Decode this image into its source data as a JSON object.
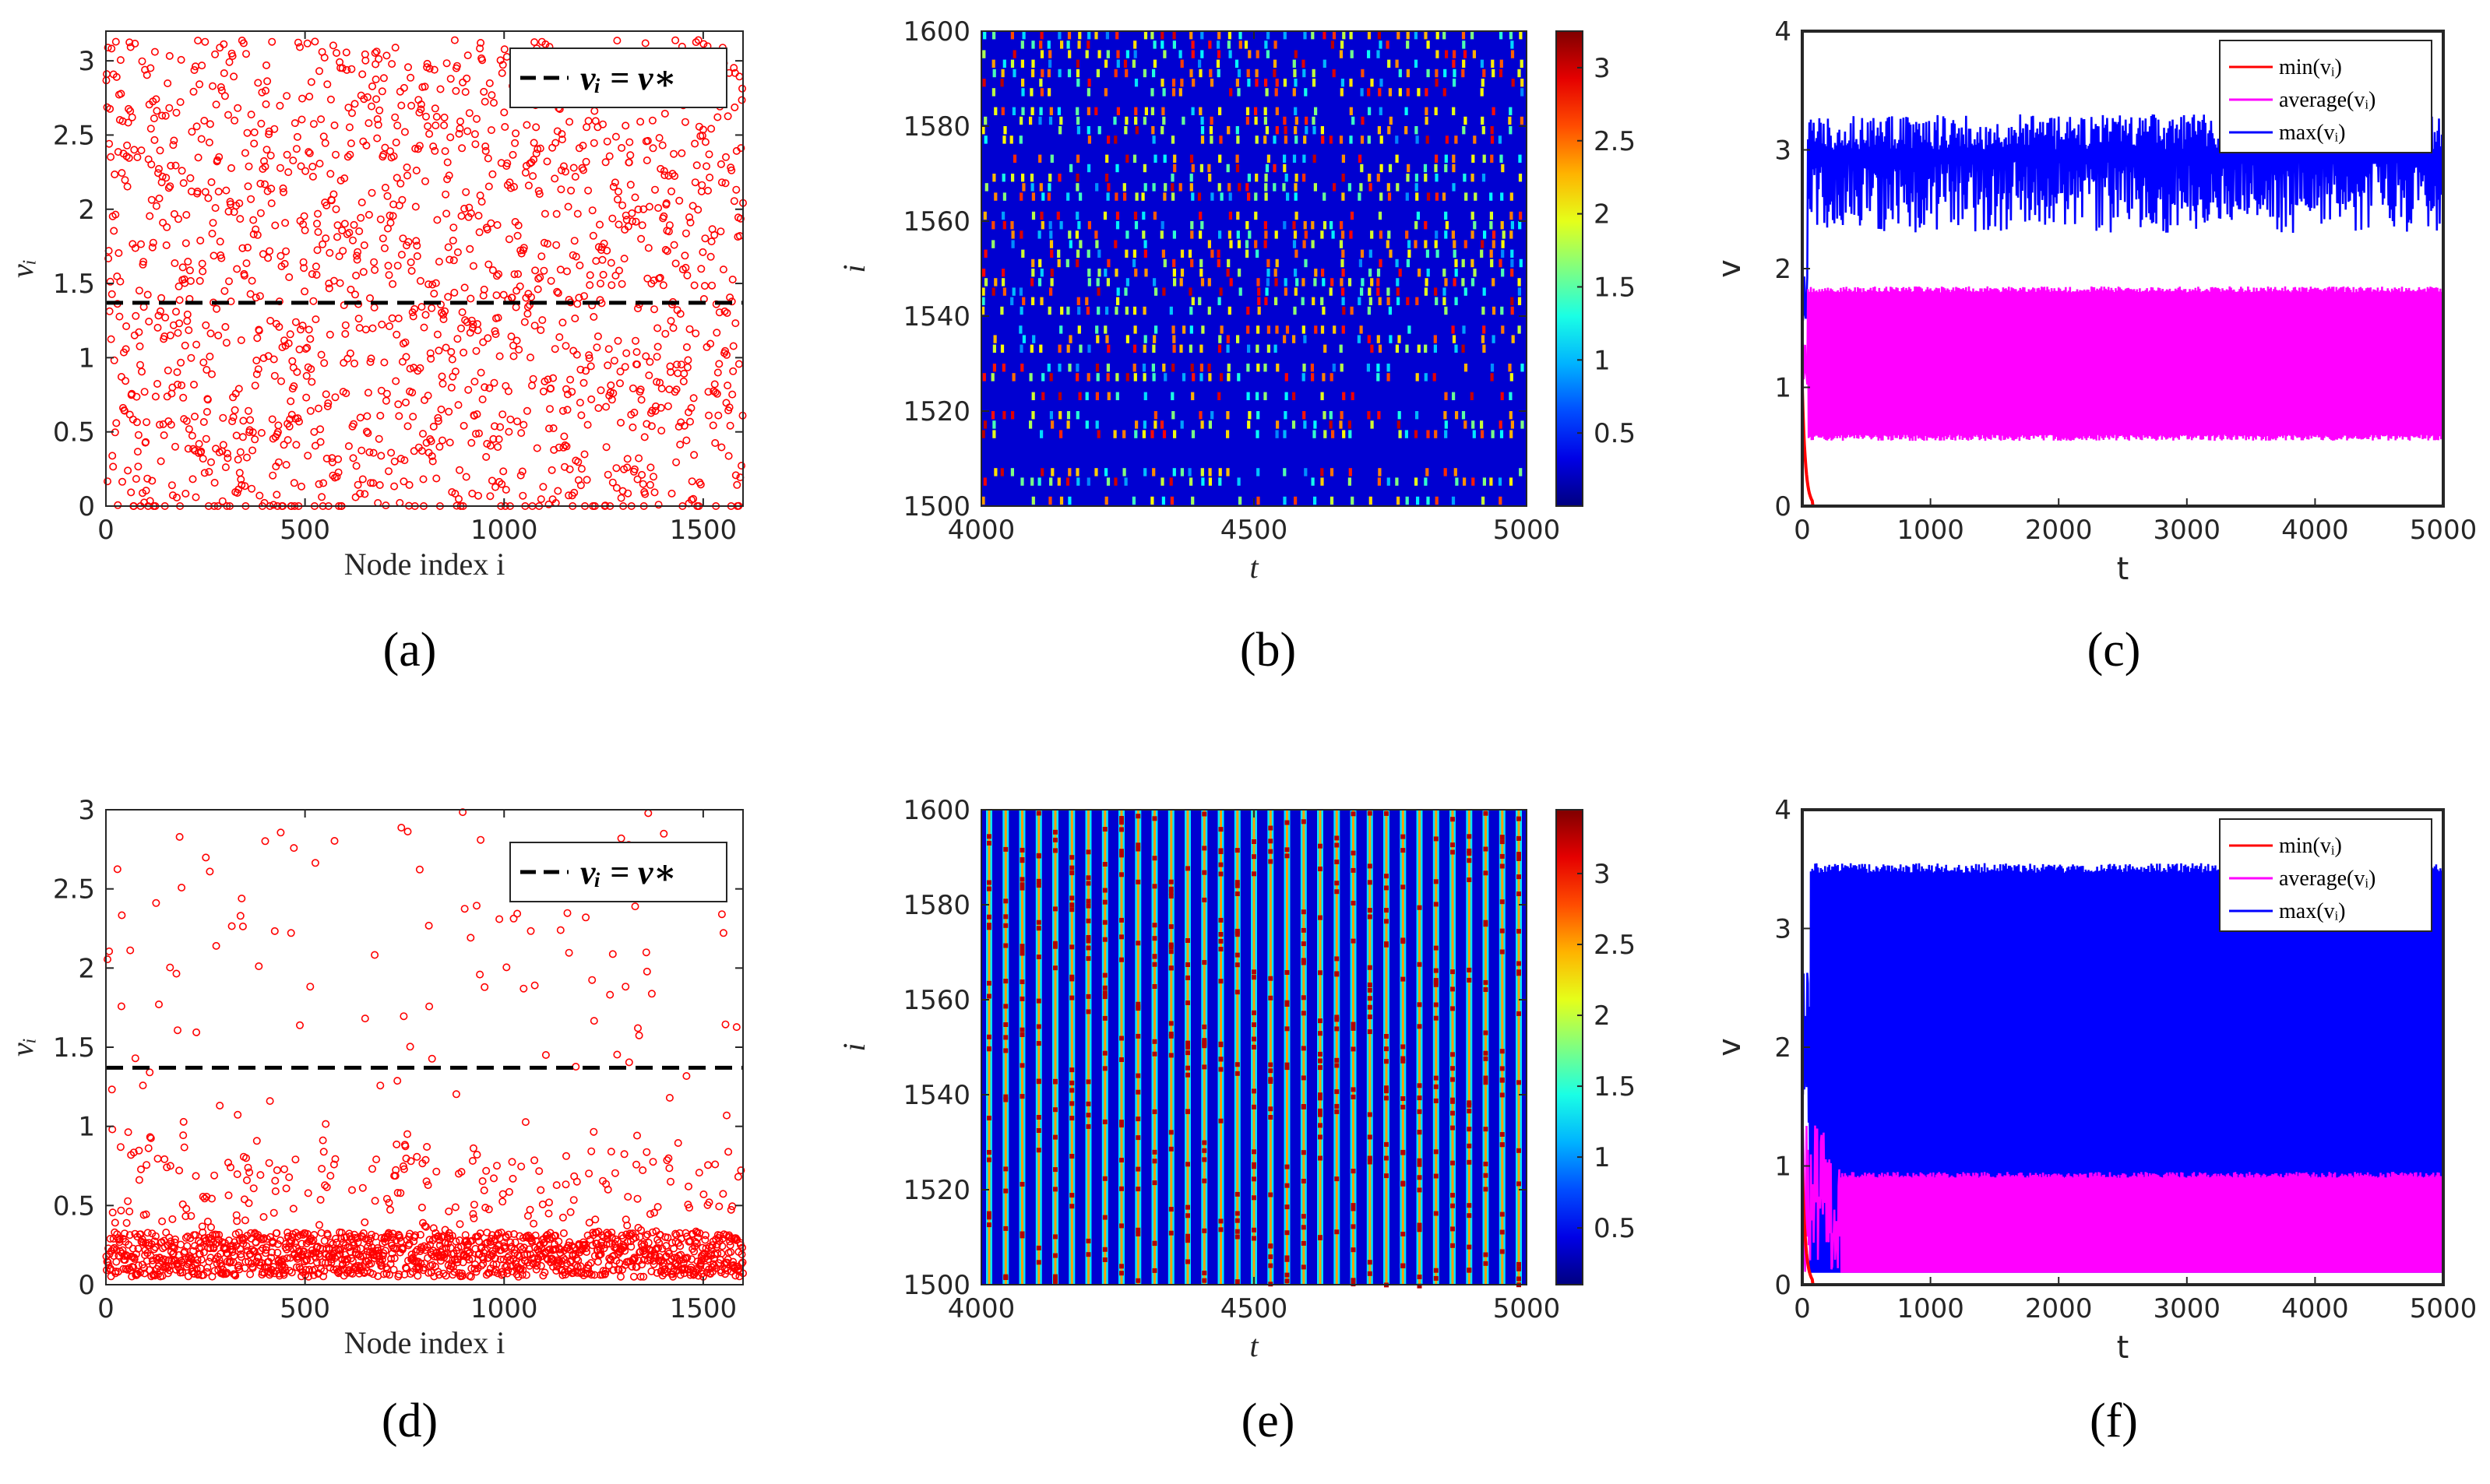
{
  "chart_data": [
    {
      "id": "a",
      "type": "scatter",
      "caption": "(a)",
      "xlabel": "Node index i",
      "ylabel": "vᵢ",
      "xlim": [
        0,
        1600
      ],
      "ylim": [
        0,
        3.2
      ],
      "xticks": [
        "0",
        "500",
        "1000",
        "1500"
      ],
      "yticks": [
        "0",
        "0.5",
        "1",
        "1.5",
        "2",
        "2.5",
        "3"
      ],
      "legend": "vᵢ = v∗",
      "threshold": 1.37,
      "series": [
        {
          "name": "v_i",
          "color": "#ff0000",
          "n": 1600,
          "distribution": "uniform 0 to 3.14 with cluster of zeros"
        }
      ]
    },
    {
      "id": "b",
      "type": "heatmap",
      "caption": "(b)",
      "xlabel": "t",
      "ylabel": "i",
      "xlim": [
        4000,
        5000
      ],
      "ylim": [
        1500,
        1600
      ],
      "xticks": [
        "4000",
        "4500",
        "5000"
      ],
      "yticks": [
        "1500",
        "1520",
        "1540",
        "1560",
        "1580",
        "1600"
      ],
      "colorbar_ticks": [
        "0.5",
        "1",
        "1.5",
        "2",
        "2.5",
        "3"
      ],
      "colorbar_range": [
        0,
        3.25
      ],
      "pattern": "irregular traveling waves"
    },
    {
      "id": "c",
      "type": "line",
      "caption": "(c)",
      "xlabel": "t",
      "ylabel": "v",
      "xlim": [
        0,
        5000
      ],
      "ylim": [
        0,
        4
      ],
      "xticks": [
        "0",
        "1000",
        "2000",
        "3000",
        "4000",
        "5000"
      ],
      "yticks": [
        "0",
        "1",
        "2",
        "3",
        "4"
      ],
      "series": [
        {
          "name": "min(vᵢ)",
          "color": "#ff0000",
          "steady": [
            0,
            0
          ]
        },
        {
          "name": "average(vᵢ)",
          "color": "#ff00ff",
          "steady": [
            0.55,
            1.85
          ]
        },
        {
          "name": "max(vᵢ)",
          "color": "#0000ff",
          "steady": [
            2.3,
            3.3
          ]
        }
      ]
    },
    {
      "id": "d",
      "type": "scatter",
      "caption": "(d)",
      "xlabel": "Node index i",
      "ylabel": "vᵢ",
      "xlim": [
        0,
        1600
      ],
      "ylim": [
        0,
        3
      ],
      "xticks": [
        "0",
        "500",
        "1000",
        "1500"
      ],
      "yticks": [
        "0",
        "0.5",
        "1",
        "1.5",
        "2",
        "2.5",
        "3"
      ],
      "legend": "vᵢ = v∗",
      "threshold": 1.37,
      "series": [
        {
          "name": "v_i",
          "color": "#ff0000",
          "n": 1600,
          "distribution": "dense band 0.05 to 0.3 with sparse outliers up to 3"
        }
      ]
    },
    {
      "id": "e",
      "type": "heatmap",
      "caption": "(e)",
      "xlabel": "t",
      "ylabel": "i",
      "xlim": [
        4000,
        5000
      ],
      "ylim": [
        1500,
        1600
      ],
      "xticks": [
        "4000",
        "4500",
        "5000"
      ],
      "yticks": [
        "1500",
        "1520",
        "1540",
        "1560",
        "1580",
        "1600"
      ],
      "colorbar_ticks": [
        "0.5",
        "1",
        "1.5",
        "2",
        "2.5",
        "3"
      ],
      "colorbar_range": [
        0.1,
        3.45
      ],
      "pattern": "synchronized vertical bursts"
    },
    {
      "id": "f",
      "type": "line",
      "caption": "(f)",
      "xlabel": "t",
      "ylabel": "v",
      "xlim": [
        0,
        5000
      ],
      "ylim": [
        0,
        4
      ],
      "xticks": [
        "0",
        "1000",
        "2000",
        "3000",
        "4000",
        "5000"
      ],
      "yticks": [
        "0",
        "1",
        "2",
        "3",
        "4"
      ],
      "series": [
        {
          "name": "min(vᵢ)",
          "color": "#ff0000",
          "steady": [
            0,
            0
          ]
        },
        {
          "name": "average(vᵢ)",
          "color": "#ff00ff",
          "steady": [
            0.1,
            0.95
          ]
        },
        {
          "name": "max(vᵢ)",
          "color": "#0000ff",
          "steady": [
            0.1,
            3.55
          ]
        }
      ]
    }
  ]
}
